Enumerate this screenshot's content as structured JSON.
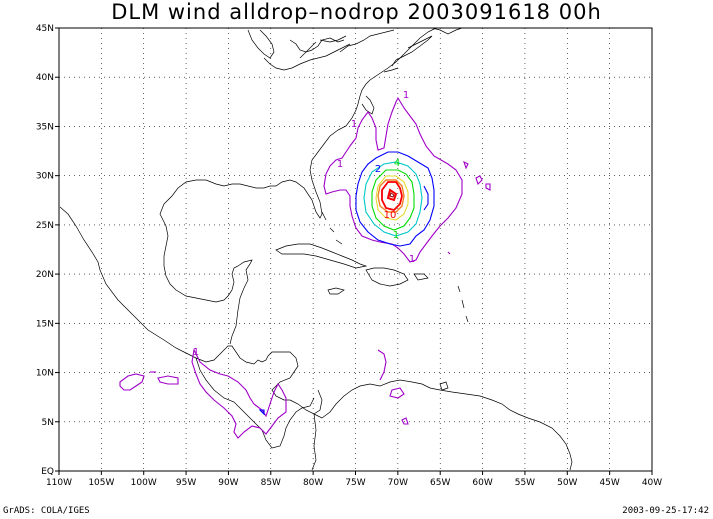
{
  "title": "DLM wind alldrop–nodrop 2003091618 00h",
  "footer": {
    "credit": "GrADS: COLA/IGES",
    "timestamp": "2003-09-25-17:42"
  },
  "map": {
    "lon_range": [
      -110,
      -40
    ],
    "lat_range": [
      0,
      45
    ],
    "grid": "dotted",
    "x_ticks": [
      "110W",
      "105W",
      "100W",
      "95W",
      "90W",
      "85W",
      "80W",
      "75W",
      "70W",
      "65W",
      "60W",
      "55W",
      "50W",
      "45W",
      "40W"
    ],
    "y_ticks": [
      "EQ",
      "5N",
      "10N",
      "15N",
      "20N",
      "25N",
      "30N",
      "35N",
      "40N",
      "45N"
    ]
  },
  "contours": {
    "levels": [
      1,
      2,
      3,
      4,
      5,
      10
    ],
    "labels": [
      "1",
      "1",
      "1",
      "1",
      "1",
      "2",
      "4",
      "10",
      "1"
    ],
    "colors": {
      "1": "#a000c8",
      "2": "#0000ff",
      "3": "#00c8c8",
      "4": "#00dc00",
      "5": "#e6dc32",
      "6": "#f08228",
      "10": "#fa0000"
    }
  }
}
